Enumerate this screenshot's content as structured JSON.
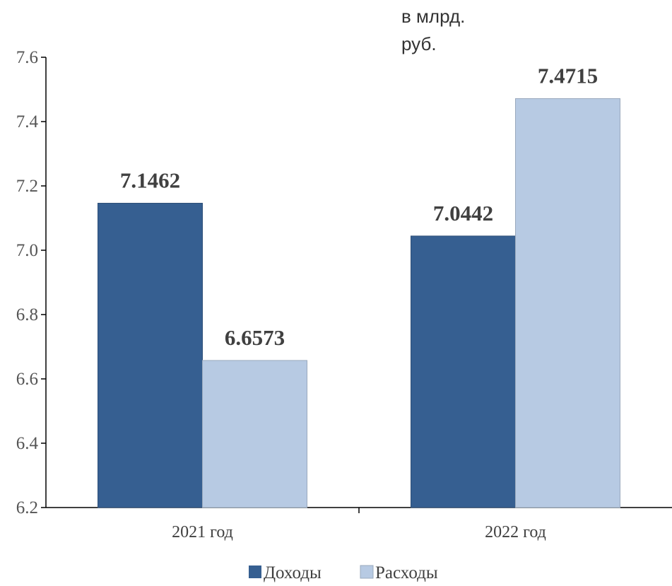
{
  "chart_data": {
    "type": "bar",
    "unit_label_line1": "в млрд.",
    "unit_label_line2": "руб.",
    "categories": [
      "2021 год",
      "2022 год"
    ],
    "series": [
      {
        "name": "Доходы",
        "values": [
          7.1462,
          7.0442
        ],
        "color": "#365f91"
      },
      {
        "name": "Расходы",
        "values": [
          6.6573,
          7.4715
        ],
        "color": "#b7cae3"
      }
    ],
    "data_labels": [
      [
        "7.1462",
        "7.0442"
      ],
      [
        "6.6573",
        "7.4715"
      ]
    ],
    "y_ticks": [
      "6.2",
      "6.4",
      "6.6",
      "6.8",
      "7.0",
      "7.2",
      "7.4",
      "7.6"
    ],
    "ylim": [
      6.2,
      7.6
    ],
    "legend_position": "bottom",
    "grid": false
  }
}
